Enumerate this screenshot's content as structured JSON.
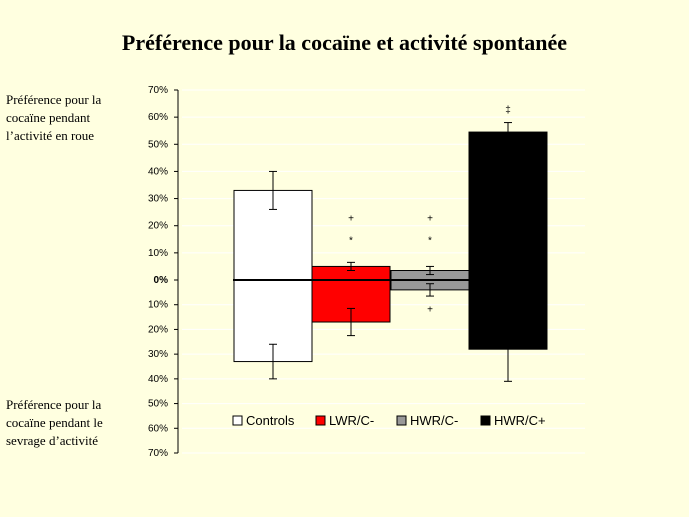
{
  "title": "Préférence pour la cocaïne et activité spontanée",
  "side_labels": {
    "top": [
      "Préférence pour la",
      "cocaïne pendant",
      "l’activité en roue"
    ],
    "bottom": [
      "Préférence pour la",
      "cocaïne pendant le",
      "sevrage d’activité"
    ]
  },
  "colors": {
    "background": "#ffffe0",
    "Controls": "#ffffff",
    "LWR/C-": "#ff0000",
    "HWR/C-": "#999999",
    "HWR/C+": "#000000"
  },
  "chart_data": {
    "type": "bar",
    "title": "Préférence pour la cocaïne et activité spontanée",
    "ylim": [
      -70,
      70
    ],
    "yticks": [
      {
        "value": 70,
        "label": "70%"
      },
      {
        "value": 60,
        "label": "60%"
      },
      {
        "value": 50,
        "label": "50%"
      },
      {
        "value": 40,
        "label": "40%"
      },
      {
        "value": 30,
        "label": "30%"
      },
      {
        "value": 20,
        "label": "20%"
      },
      {
        "value": 10,
        "label": "10%"
      },
      {
        "value": 0,
        "label": "0%"
      },
      {
        "value": -10,
        "label": "10%"
      },
      {
        "value": -20,
        "label": "20%"
      },
      {
        "value": -30,
        "label": "30%"
      },
      {
        "value": -40,
        "label": "40%"
      },
      {
        "value": -50,
        "label": "50%"
      },
      {
        "value": -60,
        "label": "60%"
      },
      {
        "value": -70,
        "label": "70%"
      }
    ],
    "categories": [
      "Controls",
      "LWR/C-",
      "HWR/C-",
      "HWR/C+"
    ],
    "series": [
      {
        "name": "Préférence pour la cocaïne pendant l’activité en roue",
        "values": [
          33,
          5,
          3.5,
          54.5
        ],
        "errors": [
          7,
          1.5,
          1.5,
          3.5
        ]
      },
      {
        "name": "Préférence pour la cocaïne pendant le sevrage d’activité",
        "values": [
          -33,
          -17,
          -4,
          -28
        ],
        "errors": [
          7,
          5.5,
          2.5,
          13
        ]
      }
    ],
    "legend": {
      "placement": "bottom",
      "entries": [
        "Controls",
        "LWR/C-",
        "HWR/C-",
        "HWR/C+"
      ]
    },
    "annotations": [
      {
        "text": "‡",
        "category": "HWR/C+",
        "value": 63
      },
      {
        "text": "+",
        "category": "LWR/C-",
        "value": 23
      },
      {
        "text": "*",
        "category": "LWR/C-",
        "value": 15
      },
      {
        "text": "+",
        "category": "HWR/C-",
        "value": 23
      },
      {
        "text": "*",
        "category": "HWR/C-",
        "value": 15
      },
      {
        "text": "+",
        "category": "HWR/C-",
        "value": -11.5
      }
    ]
  }
}
